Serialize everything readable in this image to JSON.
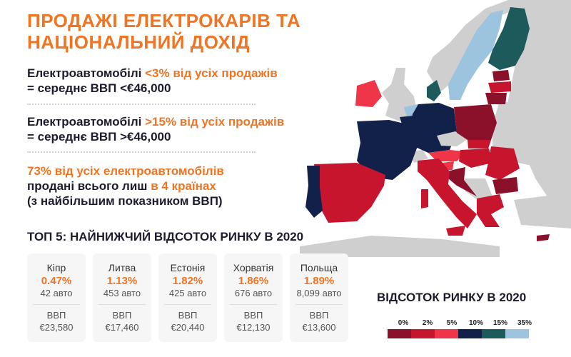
{
  "title": "ПРОДАЖІ ЕЛЕКТРОКАРІВ ТА НАЦІОНАЛЬНИЙ ДОХІД",
  "stat1": {
    "prefix": "Електроавтомобілі ",
    "highlight": "<3% від усіх продажів",
    "line2": "= середнє ВВП <€46,000"
  },
  "stat2": {
    "prefix": "Електроавтомобілі ",
    "highlight": ">15% від усіх продажів",
    "line2": "= середнє ВВП >€46,000"
  },
  "stat3": {
    "line1": "73% від усіх електроавтомобілів",
    "line2_prefix": "продані всього лиш ",
    "line2_highlight": "в 4 країнах",
    "line3": "(з найбільшим показником ВВП)"
  },
  "top5_title": "ТОП 5: НАЙНИЖЧИЙ ВІДСОТОК РИНКУ В 2020",
  "gdp_label": "ВВП",
  "cards": [
    {
      "country": "Кіпр",
      "share": "0.47%",
      "cars": "42 авто",
      "gdp": "€23,580"
    },
    {
      "country": "Литва",
      "share": "1.13%",
      "cars": "453 авто",
      "gdp": "€17,460"
    },
    {
      "country": "Естонія",
      "share": "1.82%",
      "cars": "425 авто",
      "gdp": "€20,440"
    },
    {
      "country": "Хорватія",
      "share": "1.86%",
      "cars": "676 авто",
      "gdp": "€12,130"
    },
    {
      "country": "Польща",
      "share": "1.89%",
      "cars": "8,099 авто",
      "gdp": "€13,600"
    }
  ],
  "legend": {
    "title": "ВІДСОТОК РИНКУ В 2020",
    "labels": [
      "0%",
      "2%",
      "5%",
      "10%",
      "15%",
      "35%"
    ],
    "colors": [
      "#8b1029",
      "#c8152e",
      "#ef3547",
      "#122149",
      "#1d5a5c",
      "#9cc4de"
    ]
  },
  "map_colors": {
    "no_data": "#cfcfcf",
    "pct_0_2": "#8b1029",
    "pct_2_5": "#c8152e",
    "pct_5_10": "#ef3547",
    "pct_10_15": "#122149",
    "pct_15_35": "#1d5a5c",
    "pct_35_plus": "#9cc4de"
  }
}
